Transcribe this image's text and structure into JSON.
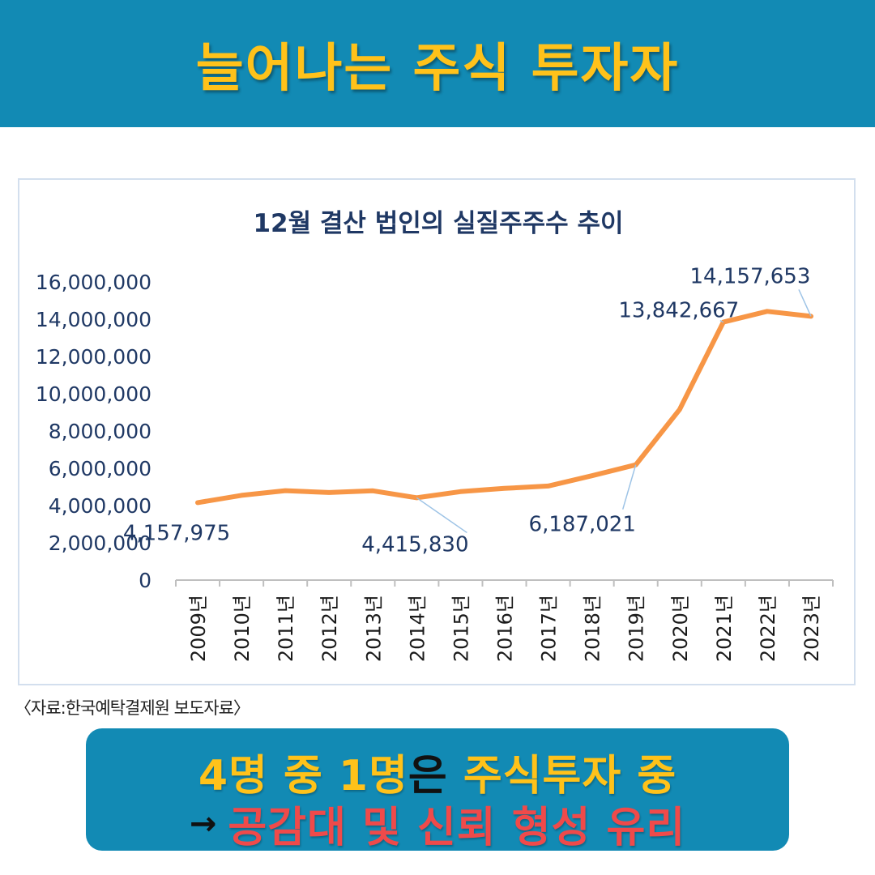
{
  "banner": {
    "title": "늘어나는 주식 투자자"
  },
  "source_note": "〈자료:한국예탁결제원 보도자료〉",
  "callout": {
    "line1_part1": "4명 중 1명",
    "line1_part2": "은",
    "line1_part3": " 주식투자 중",
    "arrow": "→",
    "line2": "공감대 및 신뢰 형성 유리"
  },
  "colors": {
    "banner_bg": "#128ab4",
    "title_yellow": "#ffc21a",
    "line_orange": "#f79646",
    "axis_text": "#1f3864",
    "highlight_red": "#ef4a4a"
  },
  "chart_data": {
    "type": "line",
    "title": "12월 결산 법인의 실질주주수 추이",
    "xlabel": "",
    "ylabel": "",
    "categories": [
      "2009년",
      "2010년",
      "2011년",
      "2012년",
      "2013년",
      "2014년",
      "2015년",
      "2016년",
      "2017년",
      "2018년",
      "2019년",
      "2020년",
      "2021년",
      "2022년",
      "2023년"
    ],
    "values": [
      4157975,
      4550000,
      4800000,
      4700000,
      4790000,
      4415830,
      4750000,
      4920000,
      5050000,
      5600000,
      6187021,
      9150000,
      13842667,
      14420000,
      14157653
    ],
    "ylim": [
      0,
      16000000
    ],
    "yticks": [
      "0",
      "2,000,000",
      "4,000,000",
      "6,000,000",
      "8,000,000",
      "10,000,000",
      "12,000,000",
      "14,000,000",
      "16,000,000"
    ],
    "data_labels": [
      {
        "index": 0,
        "text": "4,157,975"
      },
      {
        "index": 5,
        "text": "4,415,830"
      },
      {
        "index": 10,
        "text": "6,187,021"
      },
      {
        "index": 12,
        "text": "13,842,667"
      },
      {
        "index": 14,
        "text": "14,157,653"
      }
    ],
    "grid": false,
    "legend": "none"
  }
}
